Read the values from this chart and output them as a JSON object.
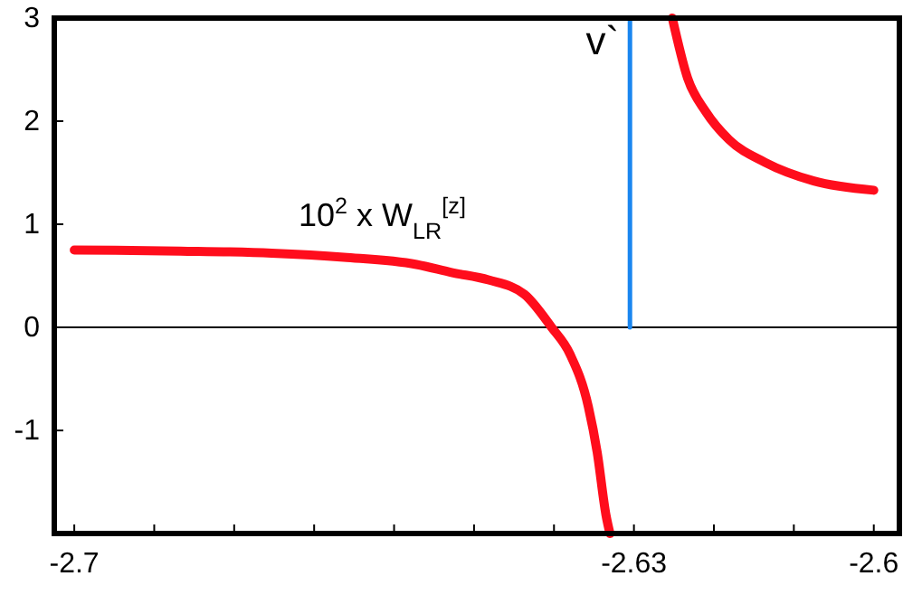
{
  "chart_data": {
    "type": "line",
    "xlim": [
      -2.7025,
      -2.5968
    ],
    "ylim": [
      -2,
      3
    ],
    "xticks": [
      -2.7,
      {
        "value": -2.69,
        "label": null
      },
      {
        "value": -2.68,
        "label": null
      },
      {
        "value": -2.67,
        "label": null
      },
      {
        "value": -2.66,
        "label": null
      },
      {
        "value": -2.65,
        "label": null
      },
      {
        "value": -2.64,
        "label": null
      },
      -2.63,
      {
        "value": -2.62,
        "label": null
      },
      {
        "value": -2.61,
        "label": null
      },
      -2.6
    ],
    "yticks": [
      {
        "value": -2,
        "label": null
      },
      -1,
      0,
      1,
      2,
      3
    ],
    "series": [
      {
        "color": "#ff0d1c",
        "x": [
          -2.7,
          -2.6867,
          -2.6753,
          -2.6663,
          -2.6572,
          -2.6527,
          -2.6482,
          -2.6437,
          -2.6403,
          -2.638,
          -2.6357,
          -2.6346,
          -2.6335,
          -2.633,
          -2.6291,
          -2.6252,
          -2.6233,
          -2.621,
          -2.6181,
          -2.6136,
          -2.6075,
          -2.6
        ],
        "values": [
          0.75,
          0.74,
          0.72,
          0.68,
          0.61,
          0.53,
          0.46,
          0.32,
          0,
          -0.26,
          -0.77,
          -1.21,
          -1.82,
          -2,
          null,
          3,
          2.42,
          2.09,
          1.82,
          1.6,
          1.42,
          1.33
        ]
      },
      {
        "name": "v`",
        "color": "#1a86f0",
        "x": [
          -2.6305,
          -2.6305
        ],
        "values": [
          0,
          3
        ]
      }
    ],
    "ref_lines": [
      {
        "axis": "y",
        "value": 0,
        "color": "#000000"
      }
    ],
    "annotations": [
      "10$^{2}$ x W$_{LR}$$^{[z]}$"
    ]
  }
}
